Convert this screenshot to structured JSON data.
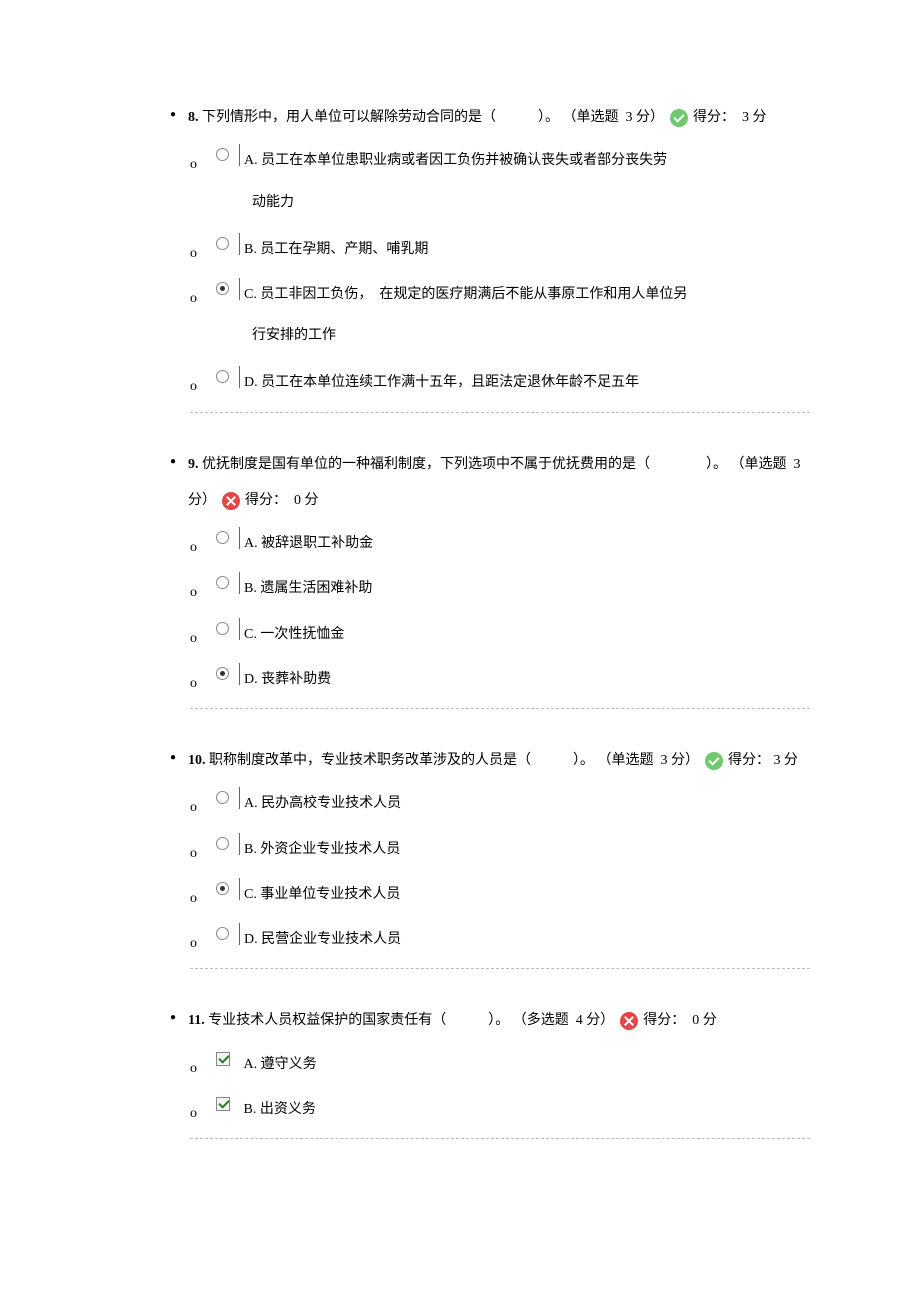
{
  "bullets": {
    "q": "●",
    "o": "o"
  },
  "labels": {
    "single": "（单选题",
    "multi": "（多选题",
    "points_suffix": "分）",
    "score_label": "得分：",
    "score_unit": "分"
  },
  "colors": {
    "correct": "#6fc96f",
    "wrong": "#e44545",
    "divider": "#bbbbbb",
    "text": "#000000",
    "background": "#ffffff"
  },
  "questions": [
    {
      "num": "8.",
      "stem": "下列情形中，用人单位可以解除劳动合同的是（　　　）。",
      "type": "single",
      "points": "3",
      "status": "correct",
      "score": "3",
      "options": [
        {
          "label": "A.",
          "text": "员工在本单位患职业病或者因工负伤并被确认丧失或者部分丧失劳",
          "cont": "动能力",
          "selected": false
        },
        {
          "label": "B.",
          "text": "员工在孕期、产期、哺乳期",
          "selected": false
        },
        {
          "label": "C.",
          "text": "员工非因工负伤，　在规定的医疗期满后不能从事原工作和用人单位另",
          "cont": "行安排的工作",
          "selected": true
        },
        {
          "label": "D.",
          "text": "员工在本单位连续工作满十五年，且距法定退休年龄不足五年",
          "selected": false
        }
      ]
    },
    {
      "num": "9.",
      "stem": "优抚制度是国有单位的一种福利制度，下列选项中不属于优抚费用的是（　　　　）。",
      "type": "single",
      "points": "3",
      "status": "wrong",
      "score": "0",
      "options": [
        {
          "label": "A.",
          "text": "被辞退职工补助金",
          "selected": false
        },
        {
          "label": "B.",
          "text": "遗属生活困难补助",
          "selected": false
        },
        {
          "label": "C.",
          "text": "一次性抚恤金",
          "selected": false
        },
        {
          "label": "D.",
          "text": "丧葬补助费",
          "selected": true
        }
      ]
    },
    {
      "num": "10.",
      "stem": "职称制度改革中，专业技术职务改革涉及的人员是（　　　）。",
      "type": "single",
      "points": "3",
      "status": "correct",
      "score": "3",
      "options": [
        {
          "label": "A.",
          "text": "民办高校专业技术人员",
          "selected": false
        },
        {
          "label": "B.",
          "text": "外资企业专业技术人员",
          "selected": false
        },
        {
          "label": "C.",
          "text": "事业单位专业技术人员",
          "selected": true
        },
        {
          "label": "D.",
          "text": "民营企业专业技术人员",
          "selected": false
        }
      ]
    },
    {
      "num": "11.",
      "stem": "专业技术人员权益保护的国家责任有（　　　）。",
      "type": "multi",
      "points": "4",
      "status": "wrong",
      "score": "0",
      "options": [
        {
          "label": "A.",
          "text": "遵守义务",
          "selected": true
        },
        {
          "label": "B.",
          "text": "出资义务",
          "selected": true
        }
      ]
    }
  ]
}
